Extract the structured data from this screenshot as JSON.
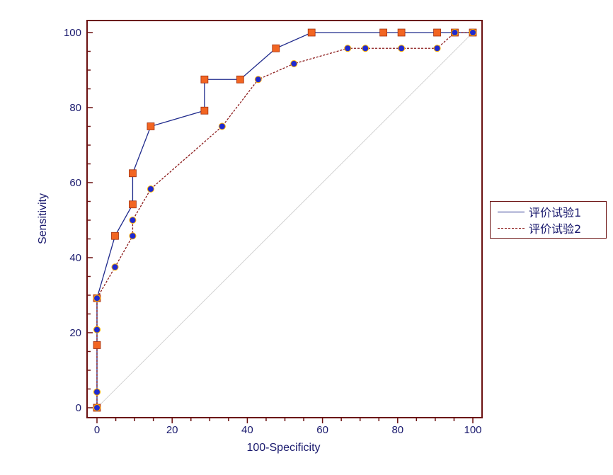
{
  "chart_data": {
    "type": "line",
    "xlabel": "100-Specificity",
    "ylabel": "Sensitivity",
    "xlim": [
      0,
      100
    ],
    "ylim": [
      0,
      100
    ],
    "x_ticks": [
      0,
      20,
      40,
      60,
      80,
      100
    ],
    "y_ticks": [
      0,
      20,
      40,
      60,
      80,
      100
    ],
    "x_minor_step": 5,
    "y_minor_step": 5,
    "grid": false,
    "legend_position": "right",
    "reference_line": {
      "from": [
        0,
        0
      ],
      "to": [
        100,
        100
      ],
      "color": "#c8c8c8"
    },
    "frame_color": "#6b1010",
    "series": [
      {
        "name": "评价试验1",
        "line_style": "solid",
        "line_color": "#1f2a8c",
        "marker": "square",
        "marker_color": "#f26522",
        "points": [
          [
            0,
            0
          ],
          [
            0,
            16.7
          ],
          [
            0,
            29.2
          ],
          [
            4.8,
            45.8
          ],
          [
            9.5,
            54.2
          ],
          [
            9.5,
            62.5
          ],
          [
            14.3,
            75
          ],
          [
            28.6,
            79.2
          ],
          [
            28.6,
            87.5
          ],
          [
            38.1,
            87.5
          ],
          [
            47.6,
            95.8
          ],
          [
            57.1,
            100
          ],
          [
            76.2,
            100
          ],
          [
            81,
            100
          ],
          [
            90.5,
            100
          ],
          [
            95.2,
            100
          ],
          [
            100,
            100
          ]
        ]
      },
      {
        "name": "评价试验2",
        "line_style": "dashed",
        "line_color": "#8b1a1a",
        "marker": "circle",
        "marker_color": "#1f2ad1",
        "points": [
          [
            0,
            0
          ],
          [
            0,
            4.2
          ],
          [
            0,
            20.8
          ],
          [
            0,
            29.2
          ],
          [
            4.8,
            37.5
          ],
          [
            9.5,
            45.8
          ],
          [
            9.5,
            50
          ],
          [
            14.3,
            58.3
          ],
          [
            33.3,
            75
          ],
          [
            42.9,
            87.5
          ],
          [
            52.4,
            91.7
          ],
          [
            66.7,
            95.8
          ],
          [
            71.4,
            95.8
          ],
          [
            81,
            95.8
          ],
          [
            90.5,
            95.8
          ],
          [
            95.2,
            100
          ],
          [
            100,
            100
          ]
        ]
      }
    ]
  }
}
